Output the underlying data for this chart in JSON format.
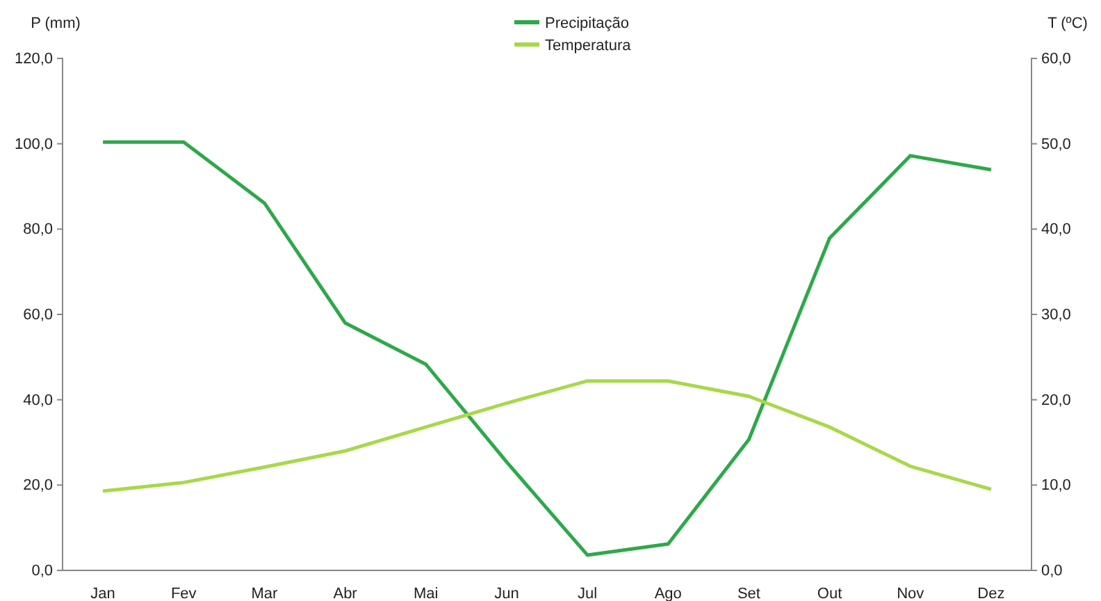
{
  "chart_data": {
    "type": "line",
    "ylabel": "P (mm)",
    "y2label": "T (ºC)",
    "categories": [
      "Jan",
      "Fev",
      "Mar",
      "Abr",
      "Mai",
      "Jun",
      "Jul",
      "Ago",
      "Set",
      "Out",
      "Nov",
      "Dez"
    ],
    "series": [
      {
        "name": "Precipitação",
        "color": "#2ea84a",
        "values": [
          100.4,
          100.4,
          86.1,
          58.0,
          48.3,
          25.4,
          3.6,
          6.2,
          30.7,
          77.9,
          97.2,
          93.9
        ]
      },
      {
        "name": "Temperatura",
        "color": "#a8d84a",
        "axis": "y2",
        "values": [
          9.3,
          10.3,
          12.1,
          14.0,
          16.8,
          19.6,
          22.2,
          22.2,
          20.4,
          16.8,
          12.2,
          9.5
        ]
      }
    ],
    "ylim": [
      0,
      120
    ],
    "yticks": [
      {
        "value": 0,
        "label": "0,0"
      },
      {
        "value": 20,
        "label": "20,0"
      },
      {
        "value": 40,
        "label": "40,0"
      },
      {
        "value": 60,
        "label": "60,0"
      },
      {
        "value": 80,
        "label": "80,0"
      },
      {
        "value": 100,
        "label": "100,0"
      },
      {
        "value": 120,
        "label": "120,0"
      }
    ],
    "y2lim": [
      0,
      60
    ],
    "y2ticks": [
      {
        "value": 0,
        "label": "0,0"
      },
      {
        "value": 10,
        "label": "10,0"
      },
      {
        "value": 20,
        "label": "20,0"
      },
      {
        "value": 30,
        "label": "30,0"
      },
      {
        "value": 40,
        "label": "40,0"
      },
      {
        "value": 50,
        "label": "50,0"
      },
      {
        "value": 60,
        "label": "60,0"
      }
    ],
    "grid": false,
    "legend": "top",
    "marker": "none",
    "line_style": "solid"
  }
}
